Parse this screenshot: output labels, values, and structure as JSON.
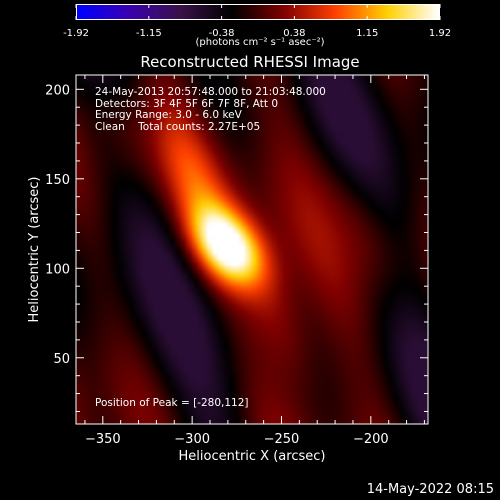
{
  "colorbar": {
    "tick_labels": [
      "-1.92",
      "-1.15",
      "-0.38",
      "0.38",
      "1.15",
      "1.92"
    ],
    "unit_label": "(photons cm⁻² s⁻¹ asec⁻²)",
    "range": [
      -1.92,
      1.92
    ]
  },
  "title": "Reconstructed RHESSI Image",
  "info": {
    "time_range": "24-May-2013 20:57:48.000 to 21:03:48.000",
    "detectors": "Detectors: 3F 4F 5F 6F 7F 8F, Att 0",
    "energy_range": "Energy Range: 3.0 - 6.0 keV",
    "clean_line": "Clean    Total counts: 2.27E+05"
  },
  "peak_label": "Position of Peak = [-280,112]",
  "footer_timestamp": "14-May-2022 08:15",
  "colors": {
    "background": "#000000",
    "axes": "#ffffff",
    "colormap": [
      "#0000ff",
      "#3a00b0",
      "#3a1248",
      "#000000",
      "#800000",
      "#ff4000",
      "#ffd000",
      "#ffffff"
    ]
  },
  "chart_data": {
    "type": "heatmap",
    "title": "Reconstructed RHESSI Image",
    "xlabel": "Heliocentric X (arcsec)",
    "ylabel": "Heliocentric Y (arcsec)",
    "xlim": [
      -365,
      -168
    ],
    "ylim": [
      13,
      208
    ],
    "x_ticks": [
      -350,
      -300,
      -250,
      -200
    ],
    "y_ticks": [
      50,
      100,
      150,
      200
    ],
    "peak": {
      "x": -280,
      "y": 112
    },
    "value_range": [
      -1.92,
      1.92
    ],
    "features": [
      {
        "x": -280,
        "y": 112,
        "value": 1.92
      },
      {
        "x": -300,
        "y": 150,
        "value": 0.6
      },
      {
        "x": -250,
        "y": 70,
        "value": 0.5
      },
      {
        "x": -340,
        "y": 180,
        "value": 0.5
      },
      {
        "x": -200,
        "y": 120,
        "value": 0.45
      }
    ]
  }
}
